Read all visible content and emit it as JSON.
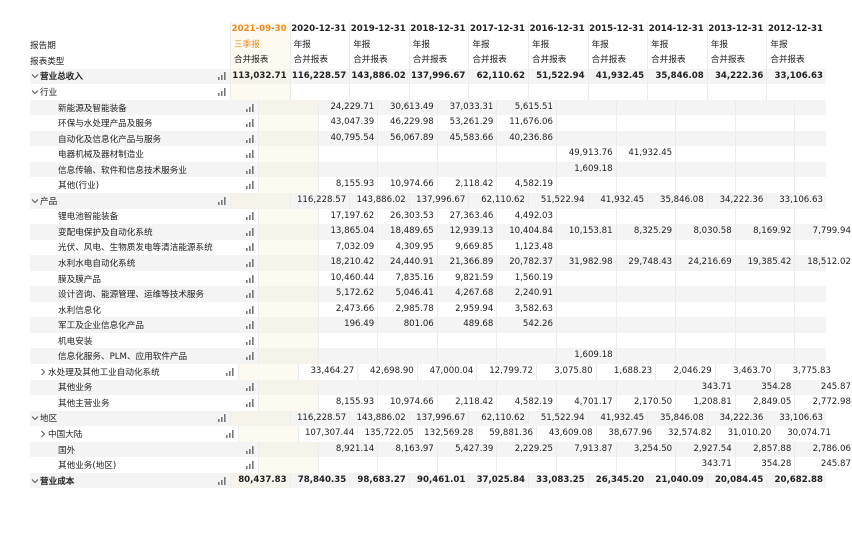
{
  "table": {
    "columns": [
      "2021-09-30",
      "2020-12-31",
      "2019-12-31",
      "2018-12-31",
      "2017-12-31",
      "2016-12-31",
      "2015-12-31",
      "2014-12-31",
      "2013-12-31",
      "2012-12-31"
    ],
    "header_rows": [
      {
        "label": "报告期",
        "values": [
          "三季报",
          "年报",
          "年报",
          "年报",
          "年报",
          "年报",
          "年报",
          "年报",
          "年报",
          "年报"
        ]
      },
      {
        "label": "报表类型",
        "values": [
          "合并报表",
          "合并报表",
          "合并报表",
          "合并报表",
          "合并报表",
          "合并报表",
          "合并报表",
          "合并报表",
          "合并报表",
          "合并报表"
        ]
      }
    ],
    "rows": [
      {
        "label": "营业总收入",
        "values": [
          "113,032.71",
          "116,228.57",
          "143,886.02",
          "137,996.67",
          "62,110.62",
          "51,522.94",
          "41,932.45",
          "35,846.08",
          "34,222.36",
          "33,106.63"
        ]
      },
      {
        "label": "行业",
        "values": [
          null,
          null,
          null,
          null,
          null,
          null,
          null,
          null,
          null,
          null
        ]
      },
      {
        "label": "新能源及智能装备",
        "values": [
          null,
          "24,229.71",
          "30,613.49",
          "37,033.31",
          "5,615.51",
          null,
          null,
          null,
          null,
          null
        ]
      },
      {
        "label": "环保与水处理产品及服务",
        "values": [
          null,
          "43,047.39",
          "46,229.98",
          "53,261.29",
          "11,676.06",
          null,
          null,
          null,
          null,
          null
        ]
      },
      {
        "label": "自动化及信息化产品与服务",
        "values": [
          null,
          "40,795.54",
          "56,067.89",
          "45,583.66",
          "40,236.86",
          null,
          null,
          null,
          null,
          null
        ]
      },
      {
        "label": "电器机械及器材制造业",
        "values": [
          null,
          null,
          null,
          null,
          null,
          "49,913.76",
          "41,932.45",
          null,
          null,
          null
        ]
      },
      {
        "label": "信息传输、软件和信息技术服务业",
        "values": [
          null,
          null,
          null,
          null,
          null,
          "1,609.18",
          null,
          null,
          null,
          null
        ]
      },
      {
        "label": "其他(行业)",
        "values": [
          null,
          "8,155.93",
          "10,974.66",
          "2,118.42",
          "4,582.19",
          null,
          null,
          null,
          null,
          null
        ]
      },
      {
        "label": "产品",
        "values": [
          null,
          "116,228.57",
          "143,886.02",
          "137,996.67",
          "62,110.62",
          "51,522.94",
          "41,932.45",
          "35,846.08",
          "34,222.36",
          "33,106.63"
        ]
      },
      {
        "label": "锂电池智能装备",
        "values": [
          null,
          "17,197.62",
          "26,303.53",
          "27,363.46",
          "4,492.03",
          null,
          null,
          null,
          null,
          null
        ]
      },
      {
        "label": "变配电保护及自动化系统",
        "values": [
          null,
          "13,865.04",
          "18,489.65",
          "12,939.13",
          "10,404.84",
          "10,153.81",
          "8,325.29",
          "8,030.58",
          "8,169.92",
          "7,799.94"
        ]
      },
      {
        "label": "光伏、风电、生物质发电等清洁能源系统",
        "values": [
          null,
          "7,032.09",
          "4,309.95",
          "9,669.85",
          "1,123.48",
          null,
          null,
          null,
          null,
          null
        ]
      },
      {
        "label": "水利水电自动化系统",
        "values": [
          null,
          "18,210.42",
          "24,440.91",
          "21,366.89",
          "20,782.37",
          "31,982.98",
          "29,748.43",
          "24,216.69",
          "19,385.42",
          "18,512.02"
        ]
      },
      {
        "label": "膜及膜产品",
        "values": [
          null,
          "10,460.44",
          "7,835.16",
          "9,821.59",
          "1,560.19",
          null,
          null,
          null,
          null,
          null
        ]
      },
      {
        "label": "设计咨询、能源管理、运维等技术服务",
        "values": [
          null,
          "5,172.62",
          "5,046.41",
          "4,267.68",
          "2,240.91",
          null,
          null,
          null,
          null,
          null
        ]
      },
      {
        "label": "水利信息化",
        "values": [
          null,
          "2,473.66",
          "2,985.78",
          "2,959.94",
          "3,582.63",
          null,
          null,
          null,
          null,
          null
        ]
      },
      {
        "label": "军工及企业信息化产品",
        "values": [
          null,
          "196.49",
          "801.06",
          "489.68",
          "542.26",
          null,
          null,
          null,
          null,
          null
        ]
      },
      {
        "label": "机电安装",
        "values": [
          null,
          null,
          null,
          null,
          null,
          null,
          null,
          null,
          null,
          null
        ]
      },
      {
        "label": "信息化服务、PLM、应用软件产品",
        "values": [
          null,
          null,
          null,
          null,
          null,
          "1,609.18",
          null,
          null,
          null,
          null
        ]
      },
      {
        "label": "水处理及其他工业自动化系统",
        "values": [
          null,
          "33,464.27",
          "42,698.90",
          "47,000.04",
          "12,799.72",
          "3,075.80",
          "1,688.23",
          "2,046.29",
          "3,463.70",
          "3,775.83"
        ]
      },
      {
        "label": "其他业务",
        "values": [
          null,
          null,
          null,
          null,
          null,
          null,
          null,
          "343.71",
          "354.28",
          "245.87"
        ]
      },
      {
        "label": "其他主营业务",
        "values": [
          null,
          "8,155.93",
          "10,974.66",
          "2,118.42",
          "4,582.19",
          "4,701.17",
          "2,170.50",
          "1,208.81",
          "2,849.05",
          "2,772.98"
        ]
      },
      {
        "label": "地区",
        "values": [
          null,
          "116,228.57",
          "143,886.02",
          "137,996.67",
          "62,110.62",
          "51,522.94",
          "41,932.45",
          "35,846.08",
          "34,222.36",
          "33,106.63"
        ]
      },
      {
        "label": "中国大陆",
        "values": [
          null,
          "107,307.44",
          "135,722.05",
          "132,569.28",
          "59,881.36",
          "43,609.08",
          "38,677.96",
          "32,574.82",
          "31,010.20",
          "30,074.71"
        ]
      },
      {
        "label": "国外",
        "values": [
          null,
          "8,921.14",
          "8,163.97",
          "5,427.39",
          "2,229.25",
          "7,913.87",
          "3,254.50",
          "2,927.54",
          "2,857.88",
          "2,786.06"
        ]
      },
      {
        "label": "其他业务(地区)",
        "values": [
          null,
          null,
          null,
          null,
          null,
          null,
          null,
          "343.71",
          "354.28",
          "245.87"
        ]
      },
      {
        "label": "营业成本",
        "values": [
          "80,437.83",
          "78,840.35",
          "98,683.27",
          "90,461.01",
          "37,025.84",
          "33,083.25",
          "26,345.20",
          "21,040.09",
          "20,084.45",
          "20,682.88"
        ]
      }
    ]
  }
}
